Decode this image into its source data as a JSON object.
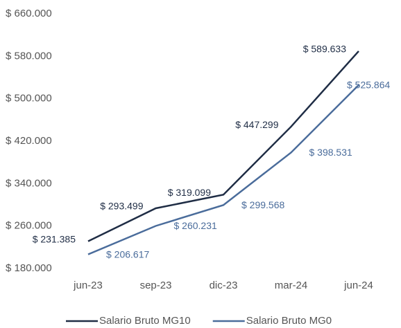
{
  "chart_data": {
    "type": "line",
    "categories": [
      "jun-23",
      "sep-23",
      "dic-23",
      "mar-24",
      "jun-24"
    ],
    "series": [
      {
        "name": "Salario Bruto MG10",
        "color": "#1f2d45",
        "values": [
          231385,
          293499,
          319099,
          447299,
          589633
        ],
        "value_labels": [
          "$ 231.385",
          "$ 293.499",
          "$ 319.099",
          "$ 447.299",
          "$ 589.633"
        ]
      },
      {
        "name": "Salario Bruto MG0",
        "color": "#4a6c9b",
        "values": [
          206617,
          260231,
          299568,
          398531,
          525864
        ],
        "value_labels": [
          "$ 206.617",
          "$ 260.231",
          "$ 299.568",
          "$ 398.531",
          "$ 525.864"
        ]
      }
    ],
    "ylim": [
      180000,
      660000
    ],
    "yticks": [
      {
        "value": 180000,
        "label": "$ 180.000"
      },
      {
        "value": 260000,
        "label": "$ 260.000"
      },
      {
        "value": 340000,
        "label": "$ 340.000"
      },
      {
        "value": 420000,
        "label": "$ 420.000"
      },
      {
        "value": 500000,
        "label": "$ 500.000"
      },
      {
        "value": 580000,
        "label": "$ 580.000"
      },
      {
        "value": 660000,
        "label": "$ 660.000"
      }
    ],
    "grid": false,
    "legend": "bottom"
  }
}
